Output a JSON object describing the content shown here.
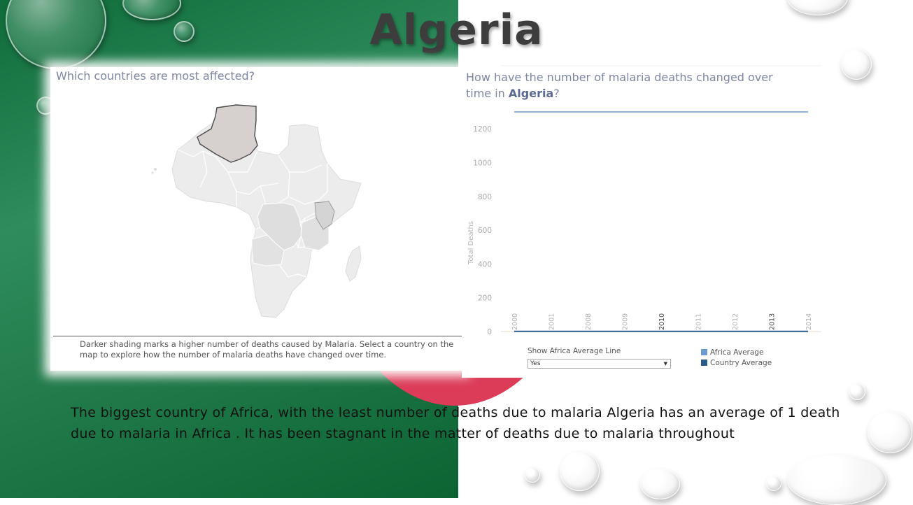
{
  "slide": {
    "title": "Algeria",
    "body": "The biggest country of Africa, with the least number of deaths due to malaria Algeria  has an average of 1 death due to malaria in Africa . It has been  stagnant in the matter of deaths due to malaria throughout"
  },
  "map_panel": {
    "heading": "Which countries are most affected?",
    "note": "Darker shading marks a higher number of deaths caused by Malaria. Select a country on the map to explore how the number of malaria deaths have changed over time.",
    "selected_country": "Algeria"
  },
  "chart_panel": {
    "heading_prefix": "How have the number of malaria deaths changed over time in ",
    "heading_country": "Algeria",
    "heading_suffix": "?",
    "filter_label": "Show Africa Average Line",
    "filter_value": "Yes",
    "legend": [
      {
        "label": "Africa Average",
        "color": "#6b9bd1"
      },
      {
        "label": "Country Average",
        "color": "#2a5a8c"
      }
    ]
  },
  "chart_data": {
    "type": "line",
    "title": "",
    "ylabel": "Total Deaths",
    "xlabel": "",
    "x": [
      "2000",
      "2001",
      "2008",
      "2009",
      "2010",
      "2011",
      "2012",
      "2013",
      "2014"
    ],
    "bold_x": [
      "2010",
      "2013"
    ],
    "ylim": [
      0,
      1300
    ],
    "yticks": [
      0,
      200,
      400,
      600,
      800,
      1000,
      1200
    ],
    "series": [
      {
        "name": "Africa Average",
        "values": [
          1300,
          1300,
          1300,
          1300,
          1300,
          1300,
          1300,
          1300,
          1300
        ],
        "color": "#6b9bd1"
      },
      {
        "name": "Country Average",
        "values": [
          1,
          1,
          1,
          1,
          1,
          1,
          1,
          1,
          1
        ],
        "color": "#2a5a8c"
      }
    ],
    "grid": false
  }
}
